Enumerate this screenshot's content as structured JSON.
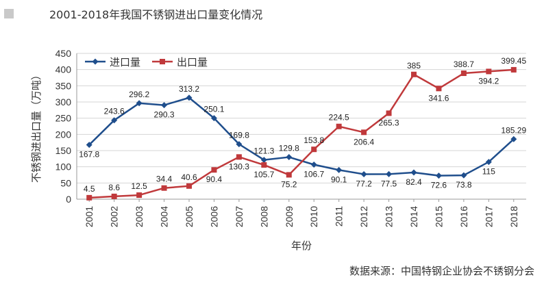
{
  "header": {
    "title": "2001-2018年我国不锈钢进出口量变化情况"
  },
  "source": "数据来源：中国特钢企业协会不锈钢分会",
  "colors": {
    "import": "#1f4e8c",
    "export": "#c0393b",
    "grid": "#d4d4d4",
    "axis": "#999999"
  },
  "chart_data": {
    "type": "line",
    "title": "2001-2018年我国不锈钢进出口量变化情况",
    "xlabel": "年份",
    "ylabel": "不锈钢进出口量（万吨）",
    "ylim": [
      0,
      450
    ],
    "yticks": [
      0,
      50,
      100,
      150,
      200,
      250,
      300,
      350,
      400,
      450
    ],
    "grid": true,
    "legend": "top-left",
    "categories": [
      "2001",
      "2002",
      "2003",
      "2004",
      "2005",
      "2006",
      "2007",
      "2008",
      "2009",
      "2010",
      "2011",
      "2012",
      "2013",
      "2014",
      "2015",
      "2016",
      "2017",
      "2018"
    ],
    "series": [
      {
        "name": "进口量",
        "color": "#1f4e8c",
        "marker": "diamond",
        "values": [
          167.8,
          243.6,
          296.2,
          290.3,
          313.2,
          250.1,
          169.8,
          121.3,
          129.8,
          106.7,
          90.1,
          77.2,
          77.5,
          82.4,
          72.6,
          73.8,
          115,
          185.29
        ],
        "labels": [
          "167.8",
          "243.6",
          "296.2",
          "290.3",
          "313.2",
          "250.1",
          "169.8",
          "121.3",
          "129.8",
          "106.7",
          "90.1",
          "77.2",
          "77.5",
          "82.4",
          "72.6",
          "73.8",
          "115",
          "185.29"
        ]
      },
      {
        "name": "出口量",
        "color": "#c0393b",
        "marker": "square",
        "values": [
          4.5,
          8.6,
          12.5,
          34.4,
          40.6,
          90.4,
          130.3,
          105.7,
          75.2,
          153.8,
          224.5,
          206.4,
          265.3,
          385,
          341.6,
          388.7,
          394.2,
          399.45
        ],
        "labels": [
          "4.5",
          "8.6",
          "12.5",
          "34.4",
          "40.6",
          "90.4",
          "130.3",
          "105.7",
          "75.2",
          "153.8",
          "224.5",
          "206.4",
          "265.3",
          "385",
          "341.6",
          "388.7",
          "394.2",
          "399.45"
        ]
      }
    ]
  }
}
